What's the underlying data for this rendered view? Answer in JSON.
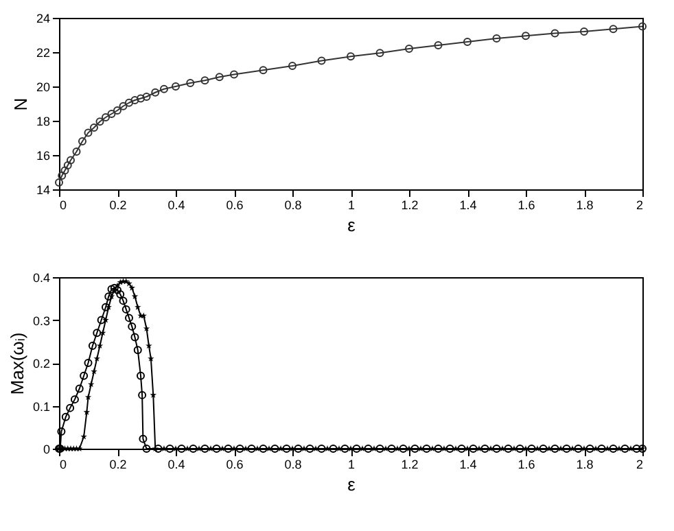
{
  "chart_data": [
    {
      "type": "line",
      "xlabel": "ε",
      "ylabel": "N",
      "xlim": [
        0,
        2
      ],
      "ylim": [
        14,
        24
      ],
      "xticks": [
        0,
        0.2,
        0.4,
        0.6,
        0.8,
        1,
        1.2,
        1.4,
        1.6,
        1.8,
        2
      ],
      "yticks": [
        14,
        16,
        18,
        20,
        22,
        24
      ],
      "grid": false,
      "marker": "circle",
      "line_style": "solid",
      "x": [
        0,
        0.01,
        0.02,
        0.03,
        0.04,
        0.06,
        0.08,
        0.1,
        0.12,
        0.14,
        0.16,
        0.18,
        0.2,
        0.22,
        0.24,
        0.26,
        0.28,
        0.3,
        0.33,
        0.36,
        0.4,
        0.45,
        0.5,
        0.55,
        0.6,
        0.7,
        0.8,
        0.9,
        1,
        1.1,
        1.2,
        1.3,
        1.4,
        1.5,
        1.6,
        1.7,
        1.8,
        1.9,
        2
      ],
      "series": [
        {
          "color": "#333333",
          "values": [
            14.4,
            14.8,
            15.1,
            15.4,
            15.7,
            16.2,
            16.8,
            17.3,
            17.6,
            17.95,
            18.2,
            18.4,
            18.6,
            18.85,
            19.05,
            19.2,
            19.3,
            19.4,
            19.65,
            19.85,
            20.0,
            20.2,
            20.35,
            20.55,
            20.7,
            20.95,
            21.2,
            21.5,
            21.75,
            21.95,
            22.2,
            22.4,
            22.6,
            22.8,
            22.95,
            23.1,
            23.2,
            23.35,
            23.5
          ]
        }
      ]
    },
    {
      "type": "line",
      "xlabel": "ε",
      "ylabel": "Max(ωᵢ)",
      "xlim": [
        0,
        2
      ],
      "ylim": [
        0,
        0.4
      ],
      "xticks": [
        0,
        0.2,
        0.4,
        0.6,
        0.8,
        1,
        1.2,
        1.4,
        1.6,
        1.8,
        2
      ],
      "yticks": [
        0,
        0.1,
        0.2,
        0.3,
        0.4
      ],
      "grid": false,
      "line_style": "solid",
      "series": [
        {
          "color": "#000000",
          "marker": "circle",
          "x": [
            0,
            0.004,
            0.008,
            0.023,
            0.038,
            0.054,
            0.07,
            0.085,
            0.1,
            0.115,
            0.13,
            0.145,
            0.16,
            0.17,
            0.18,
            0.19,
            0.2,
            0.21,
            0.22,
            0.23,
            0.24,
            0.25,
            0.26,
            0.27,
            0.28,
            0.285,
            0.288,
            0.3,
            0.34,
            0.38,
            0.42,
            0.46,
            0.5,
            0.54,
            0.58,
            0.62,
            0.66,
            0.7,
            0.74,
            0.78,
            0.82,
            0.86,
            0.9,
            0.94,
            0.98,
            1.02,
            1.06,
            1.1,
            1.14,
            1.18,
            1.22,
            1.26,
            1.3,
            1.34,
            1.38,
            1.42,
            1.46,
            1.5,
            1.54,
            1.58,
            1.62,
            1.66,
            1.7,
            1.74,
            1.78,
            1.82,
            1.86,
            1.9,
            1.94,
            1.98,
            2
          ],
          "values": [
            0,
            0,
            0.04,
            0.074,
            0.095,
            0.115,
            0.14,
            0.17,
            0.2,
            0.24,
            0.27,
            0.3,
            0.33,
            0.355,
            0.372,
            0.375,
            0.37,
            0.36,
            0.345,
            0.325,
            0.305,
            0.285,
            0.26,
            0.23,
            0.17,
            0.125,
            0.023,
            0,
            0,
            0,
            0,
            0,
            0,
            0,
            0,
            0,
            0,
            0,
            0,
            0,
            0,
            0,
            0,
            0,
            0,
            0,
            0,
            0,
            0,
            0,
            0,
            0,
            0,
            0,
            0,
            0,
            0,
            0,
            0,
            0,
            0,
            0,
            0,
            0,
            0,
            0,
            0,
            0,
            0,
            0,
            0
          ]
        },
        {
          "color": "#000000",
          "marker": "star",
          "x": [
            0,
            0.01,
            0.02,
            0.03,
            0.04,
            0.05,
            0.06,
            0.07,
            0.085,
            0.095,
            0.1,
            0.11,
            0.12,
            0.13,
            0.14,
            0.15,
            0.16,
            0.17,
            0.18,
            0.19,
            0.2,
            0.21,
            0.22,
            0.23,
            0.24,
            0.25,
            0.26,
            0.27,
            0.28,
            0.29,
            0.3,
            0.308,
            0.315,
            0.323,
            0.33,
            0.36,
            0.4,
            0.44,
            0.48,
            0.52,
            0.56,
            0.6,
            0.64,
            0.68,
            0.72,
            0.76,
            0.8,
            0.84,
            0.88,
            0.92,
            0.96,
            1,
            1.04,
            1.08,
            1.12,
            1.16,
            1.2,
            1.24,
            1.28,
            1.32,
            1.36,
            1.4,
            1.44,
            1.48,
            1.52,
            1.56,
            1.6,
            1.64,
            1.68,
            1.72,
            1.76,
            1.8,
            1.84,
            1.88,
            1.92,
            1.96,
            2
          ],
          "values": [
            0,
            0,
            0,
            0,
            0,
            0,
            0,
            0,
            0.028,
            0.085,
            0.12,
            0.15,
            0.18,
            0.21,
            0.24,
            0.27,
            0.3,
            0.33,
            0.355,
            0.37,
            0.38,
            0.388,
            0.39,
            0.39,
            0.385,
            0.375,
            0.355,
            0.33,
            0.31,
            0.31,
            0.28,
            0.24,
            0.21,
            0.125,
            0,
            0,
            0,
            0,
            0,
            0,
            0,
            0,
            0,
            0,
            0,
            0,
            0,
            0,
            0,
            0,
            0,
            0,
            0,
            0,
            0,
            0,
            0,
            0,
            0,
            0,
            0,
            0,
            0,
            0,
            0,
            0,
            0,
            0,
            0,
            0,
            0,
            0,
            0,
            0,
            0,
            0,
            0
          ]
        }
      ]
    }
  ]
}
